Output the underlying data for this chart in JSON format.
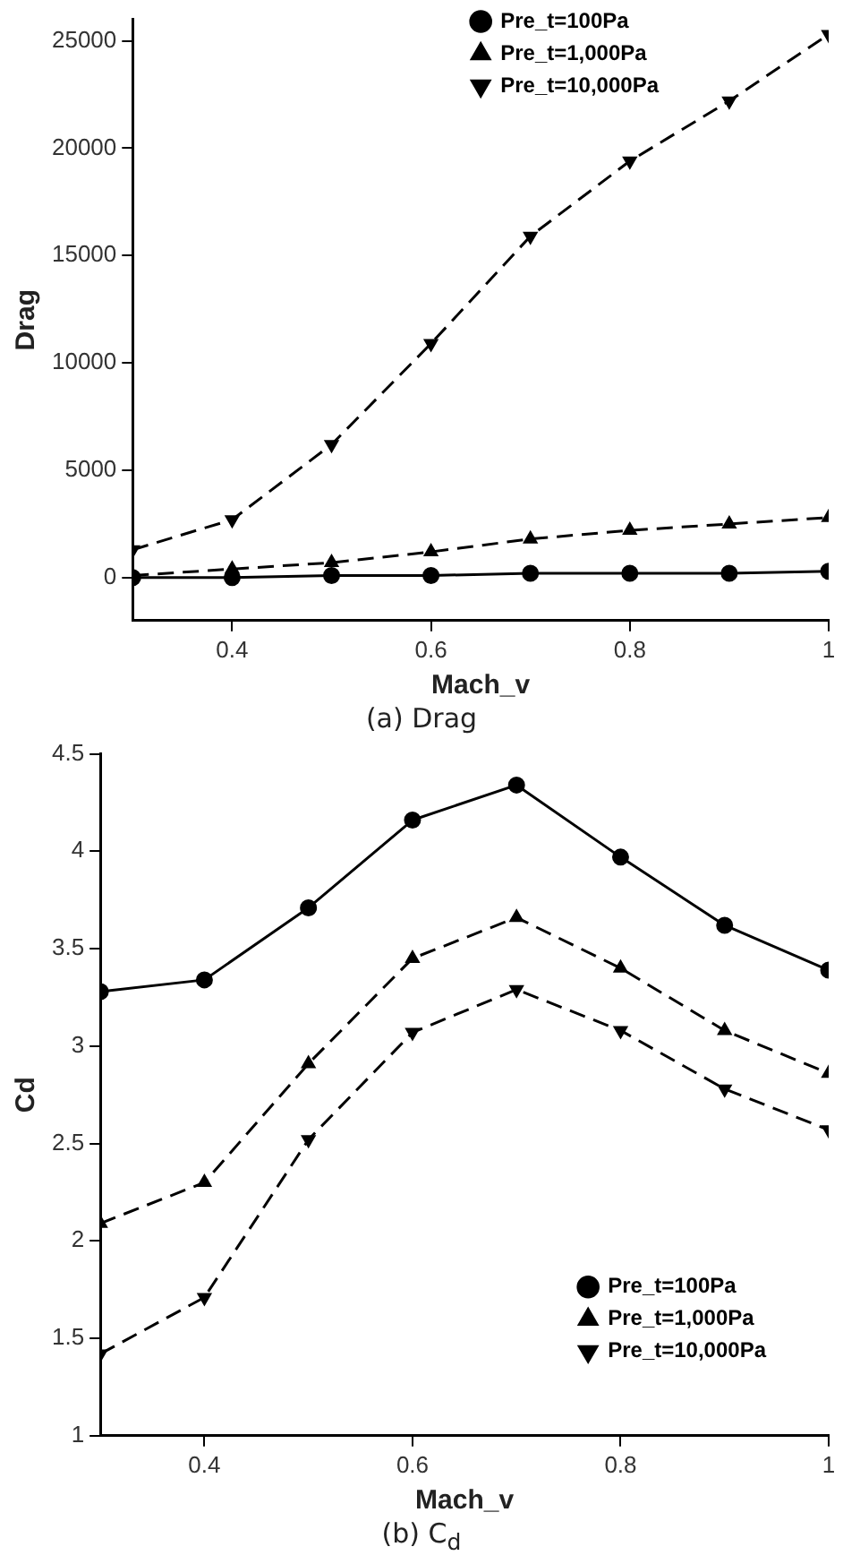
{
  "chart_data": [
    {
      "type": "line",
      "title": "(a) Drag",
      "xlabel": "Mach_v",
      "ylabel": "Drag",
      "x": [
        0.3,
        0.4,
        0.5,
        0.6,
        0.7,
        0.8,
        0.9,
        1
      ],
      "xlim": [
        0.3,
        1
      ],
      "xticks": [
        {
          "value": 0.4,
          "label": "0.4"
        },
        {
          "value": 0.6,
          "label": "0.6"
        },
        {
          "value": 0.8,
          "label": "0.8"
        },
        1
      ],
      "ylim": [
        -2000,
        26000
      ],
      "yticks": [
        0,
        5000,
        10000,
        15000,
        20000,
        25000
      ],
      "grid": false,
      "legend": "top right",
      "series": [
        {
          "name": "Pre_t=100Pa",
          "color": "#000000",
          "marker": "circle",
          "line_style": "solid",
          "values": [
            0,
            0,
            100,
            100,
            200,
            200,
            200,
            300
          ]
        },
        {
          "name": "Pre_t=1,000Pa",
          "color": "#000000",
          "marker": "triangle",
          "line_style": "dashed",
          "values": [
            100,
            400,
            700,
            1200,
            1800,
            2200,
            2500,
            2800
          ]
        },
        {
          "name": "Pre_t=10,000Pa",
          "color": "#000000",
          "marker": "triangle_down",
          "line_style": "dashed",
          "values": [
            1300,
            2700,
            6200,
            10900,
            15900,
            19400,
            22200,
            25300
          ]
        }
      ]
    },
    {
      "type": "line",
      "title": "(b) C$_{d}$",
      "xlabel": "Mach_v",
      "ylabel": "Cd",
      "x": [
        0.3,
        0.4,
        0.5,
        0.6,
        0.7,
        0.8,
        0.9,
        1
      ],
      "xlim": [
        0.3,
        1
      ],
      "xticks": [
        {
          "value": 0.4,
          "label": "0.4"
        },
        {
          "value": 0.6,
          "label": "0.6"
        },
        {
          "value": 0.8,
          "label": "0.8"
        },
        1
      ],
      "ylim": [
        1,
        4.5
      ],
      "yticks": [
        1,
        1.5,
        2,
        2.5,
        3,
        3.5,
        4,
        4.5
      ],
      "grid": false,
      "legend": "bottom right",
      "series": [
        {
          "name": "Pre_t=100Pa",
          "color": "#000000",
          "marker": "circle",
          "line_style": "solid",
          "values": [
            3.28,
            3.34,
            3.71,
            4.16,
            4.34,
            3.97,
            3.62,
            3.39
          ]
        },
        {
          "name": "Pre_t=1,000Pa",
          "color": "#000000",
          "marker": "triangle",
          "line_style": "dashed",
          "values": [
            2.09,
            2.3,
            2.91,
            3.45,
            3.66,
            3.4,
            3.08,
            2.86
          ]
        },
        {
          "name": "Pre_t=10,000Pa",
          "color": "#000000",
          "marker": "triangle_down",
          "line_style": "dashed",
          "values": [
            1.42,
            1.71,
            2.52,
            3.07,
            3.29,
            3.08,
            2.78,
            2.57
          ]
        }
      ]
    }
  ]
}
